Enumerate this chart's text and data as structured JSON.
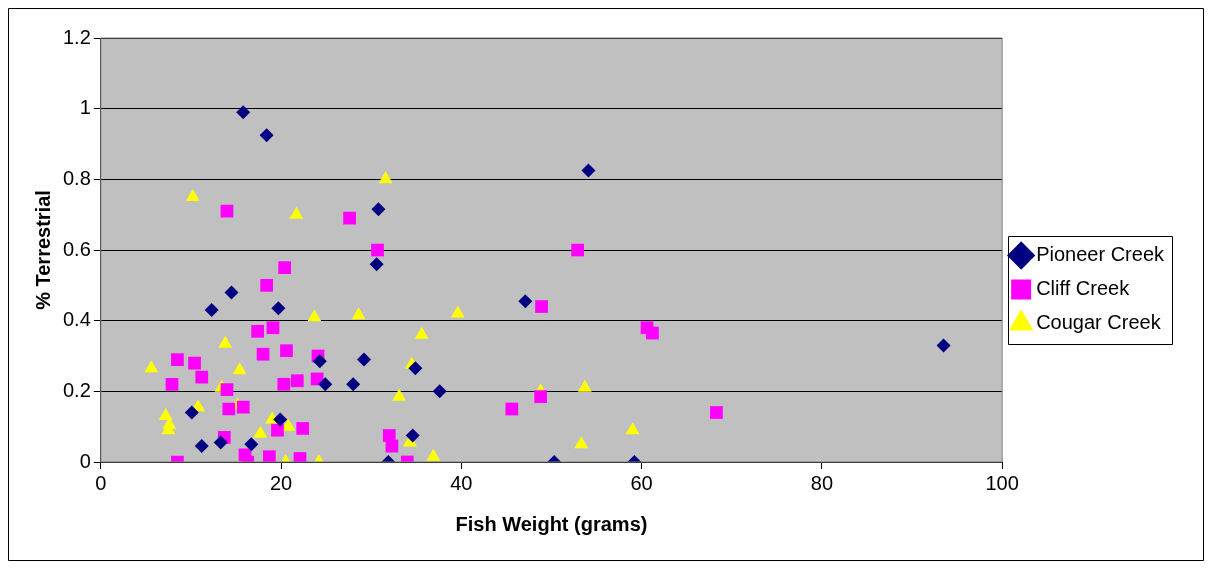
{
  "chart_data": {
    "type": "scatter",
    "xlabel": "Fish Weight (grams)",
    "ylabel": "% Terrestrial",
    "xlim": [
      0,
      100
    ],
    "xticks": [
      0,
      20,
      40,
      60,
      80,
      100
    ],
    "ylim": [
      0,
      1.2
    ],
    "yticks": [
      0,
      0.2,
      0.4,
      0.6,
      0.8,
      1,
      1.2
    ],
    "grid": "y",
    "legend": "right",
    "series": [
      {
        "name": "Pioneer Creek",
        "color": "#000080",
        "marker": "diamond",
        "x": [
          15.8,
          18.4,
          54.1,
          30.8,
          30.6,
          47.1,
          14.5,
          12.3,
          19.7,
          93.5,
          24.3,
          29.2,
          24.9,
          28.0,
          34.9,
          37.6,
          10.1,
          19.9,
          11.2,
          13.3,
          16.7,
          34.6,
          31.9,
          50.3,
          59.2
        ],
        "values": [
          0.99,
          0.925,
          0.825,
          0.715,
          0.56,
          0.455,
          0.48,
          0.43,
          0.435,
          0.33,
          0.285,
          0.29,
          0.22,
          0.22,
          0.265,
          0.2,
          0.14,
          0.12,
          0.045,
          0.055,
          0.05,
          0.075,
          0,
          0,
          0
        ]
      },
      {
        "name": "Cliff Creek",
        "color": "#ff00ff",
        "marker": "square",
        "x": [
          14.0,
          27.6,
          30.7,
          52.9,
          20.4,
          18.4,
          48.9,
          60.6,
          61.2,
          17.4,
          19.1,
          18.0,
          20.6,
          24.1,
          8.5,
          10.4,
          7.9,
          11.2,
          20.3,
          21.8,
          24.0,
          14.0,
          14.2,
          15.8,
          13.7,
          16.0,
          16.3,
          18.7,
          19.6,
          22.4,
          22.1,
          32.0,
          32.3,
          34.0,
          8.5,
          48.8,
          45.6,
          68.3
        ],
        "values": [
          0.71,
          0.69,
          0.6,
          0.6,
          0.55,
          0.5,
          0.44,
          0.38,
          0.365,
          0.37,
          0.38,
          0.305,
          0.315,
          0.3,
          0.29,
          0.28,
          0.22,
          0.24,
          0.22,
          0.23,
          0.235,
          0.205,
          0.15,
          0.155,
          0.07,
          0.02,
          0,
          0.015,
          0.09,
          0.095,
          0.01,
          0.075,
          0.045,
          0,
          0,
          0.185,
          0.15,
          0.14
        ]
      },
      {
        "name": "Cougar Creek",
        "color": "#ffff00",
        "marker": "triangle",
        "x": [
          10.2,
          21.7,
          31.6,
          23.7,
          28.6,
          39.6,
          35.6,
          5.6,
          13.8,
          15.4,
          13.4,
          34.5,
          33.1,
          48.8,
          53.7,
          7.2,
          7.6,
          7.5,
          10.8,
          15.2,
          17.7,
          19.0,
          20.8,
          20.5,
          24.2,
          34.3,
          36.9,
          53.3,
          59.0
        ],
        "values": [
          0.75,
          0.7,
          0.8,
          0.41,
          0.415,
          0.42,
          0.36,
          0.265,
          0.335,
          0.26,
          0.21,
          0.275,
          0.185,
          0.2,
          0.21,
          0.13,
          0.105,
          0.09,
          0.155,
          0.16,
          0.08,
          0.12,
          0.1,
          0,
          0,
          0.055,
          0.015,
          0.05,
          0.09
        ]
      }
    ]
  }
}
